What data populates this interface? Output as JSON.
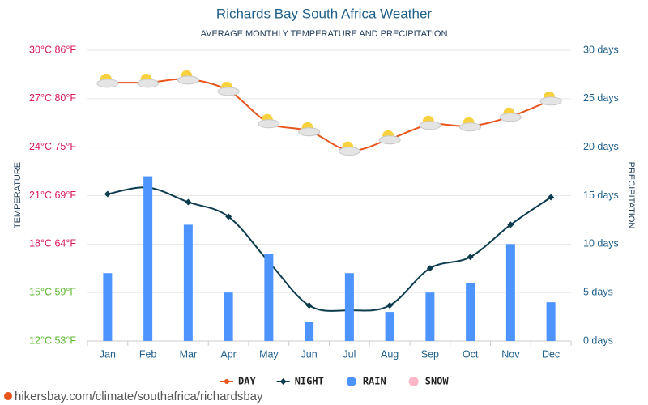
{
  "chart_data": {
    "type": "line-bar",
    "title": "Richards Bay South Africa Weather",
    "subtitle": "AVERAGE MONTHLY TEMPERATURE AND PRECIPITATION",
    "ylabel": "TEMPERATURE",
    "y2label": "PRECIPITATION",
    "categories": [
      "Jan",
      "Feb",
      "Mar",
      "Apr",
      "May",
      "Jun",
      "Jul",
      "Aug",
      "Sep",
      "Oct",
      "Nov",
      "Dec"
    ],
    "ylim": [
      12,
      30
    ],
    "yticks": [
      {
        "value": 30,
        "label": "30°C 86°F",
        "color": "#d81b60"
      },
      {
        "value": 27,
        "label": "27°C 80°F",
        "color": "#d81b60"
      },
      {
        "value": 24,
        "label": "24°C 75°F",
        "color": "#d81b60"
      },
      {
        "value": 21,
        "label": "21°C 69°F",
        "color": "#d81b60"
      },
      {
        "value": 18,
        "label": "18°C 64°F",
        "color": "#d81b60"
      },
      {
        "value": 15,
        "label": "15°C 59°F",
        "color": "#5cb82e"
      },
      {
        "value": 12,
        "label": "12°C 53°F",
        "color": "#5cb82e"
      }
    ],
    "y2lim": [
      0,
      30
    ],
    "y2ticks": [
      {
        "value": 30,
        "label": "30 days"
      },
      {
        "value": 25,
        "label": "25 days"
      },
      {
        "value": 20,
        "label": "20 days"
      },
      {
        "value": 15,
        "label": "15 days"
      },
      {
        "value": 10,
        "label": "10 days"
      },
      {
        "value": 5,
        "label": "5 days"
      },
      {
        "value": 0,
        "label": "0 days"
      }
    ],
    "grid": true,
    "series": [
      {
        "name": "DAY",
        "color": "#e8541a",
        "kind": "line",
        "values": [
          28.0,
          28.0,
          28.2,
          27.5,
          25.5,
          25.0,
          23.8,
          24.5,
          25.4,
          25.3,
          25.9,
          26.9
        ]
      },
      {
        "name": "NIGHT",
        "color": "#0d3c4f",
        "kind": "line",
        "marker": "diamond",
        "values": [
          21.1,
          21.5,
          20.6,
          19.7,
          16.9,
          14.2,
          13.9,
          14.2,
          16.5,
          17.2,
          19.2,
          20.9
        ]
      },
      {
        "name": "RAIN",
        "color": "#4d94ff",
        "kind": "bar",
        "axis": "y2",
        "values": [
          7,
          17,
          12,
          5,
          9,
          2,
          7,
          3,
          5,
          6,
          10,
          4
        ]
      },
      {
        "name": "SNOW",
        "color": "#ffb6c8",
        "kind": "bar",
        "axis": "y2"
      }
    ],
    "source": "hikersbay.com/climate/southafrica/richardsbay"
  }
}
